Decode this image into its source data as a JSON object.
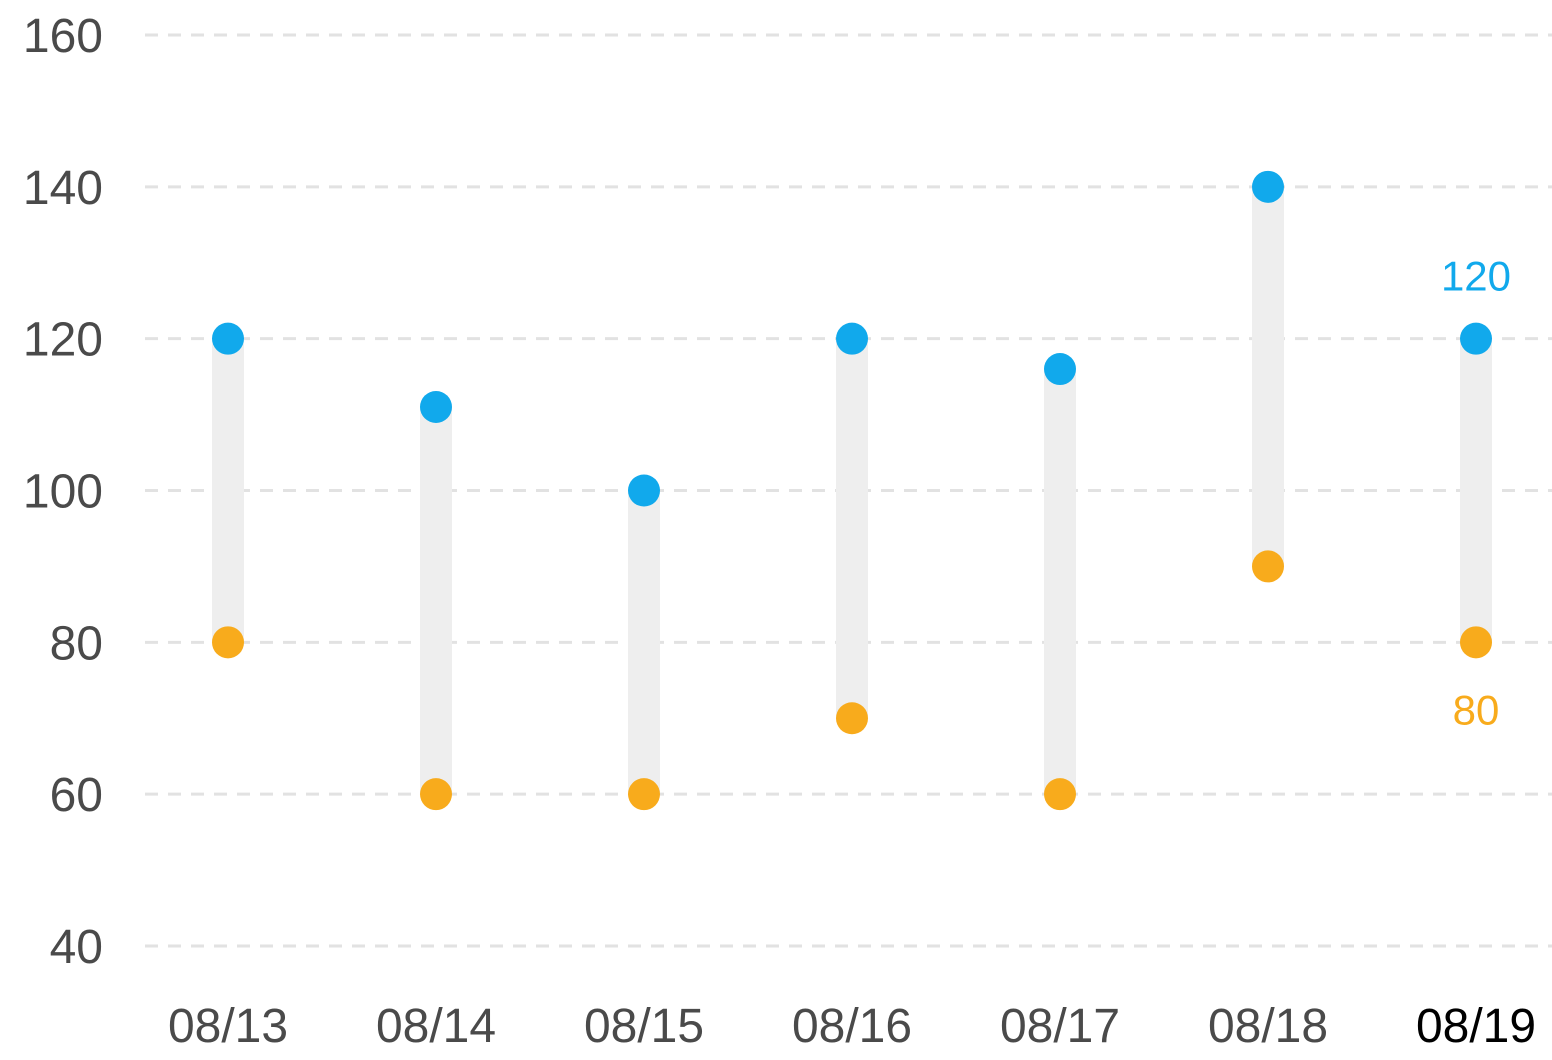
{
  "chart_data": {
    "type": "range-dot",
    "categories": [
      "08/13",
      "08/14",
      "08/15",
      "08/16",
      "08/17",
      "08/18",
      "08/19"
    ],
    "series": [
      {
        "key": "high",
        "values": [
          120,
          111,
          100,
          120,
          116,
          140,
          120
        ]
      },
      {
        "key": "low",
        "values": [
          80,
          60,
          60,
          70,
          60,
          90,
          80
        ]
      }
    ],
    "yticks": [
      "40",
      "60",
      "80",
      "100",
      "120",
      "140",
      "160"
    ],
    "ylim": [
      40,
      160
    ],
    "grid": true,
    "highlight_index": 6,
    "annotations": {
      "high_label": "120",
      "low_label": "80"
    },
    "colors": {
      "high": "#11a9ec",
      "low": "#f8ab1c",
      "bar": "#eeeeee",
      "grid": "#e2e2e2",
      "tick": "#4a4a4a",
      "tick_active": "#000000"
    }
  }
}
